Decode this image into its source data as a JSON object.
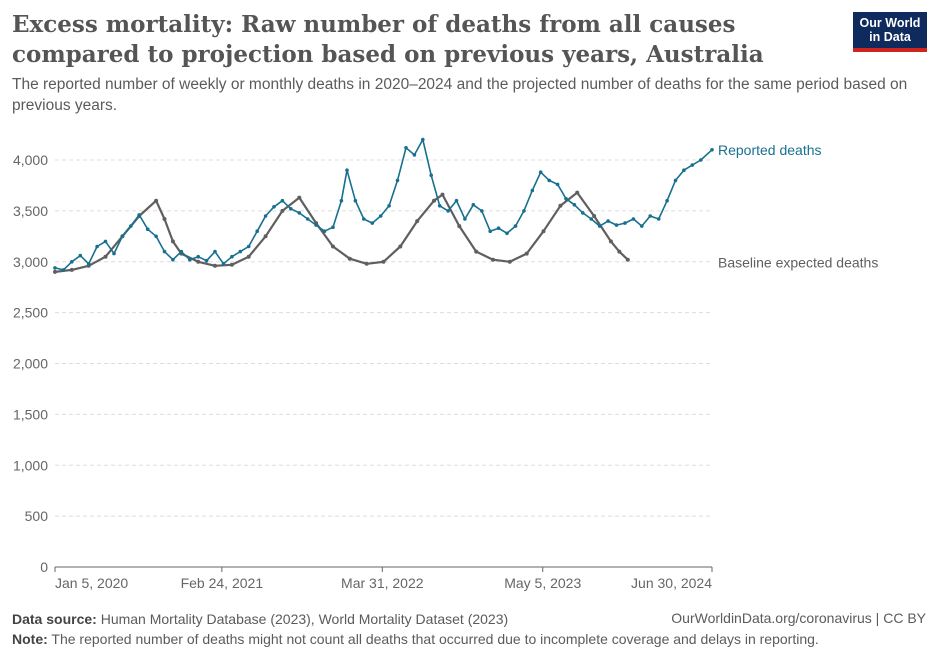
{
  "header": {
    "title": "Excess mortality: Raw number of deaths from all causes compared to projection based on previous years, Australia",
    "subtitle": "The reported number of weekly or monthly deaths in 2020–2024 and the projected number of deaths for the same period based on previous years.",
    "logo_line1": "Our World",
    "logo_line2": "in Data"
  },
  "footer": {
    "source_label": "Data source:",
    "source_text": "Human Mortality Database (2023), World Mortality Dataset (2023)",
    "credit": "OurWorldinData.org/coronavirus | CC BY",
    "note_label": "Note:",
    "note_text": "The reported number of deaths might not count all deaths that occurred due to incomplete coverage and delays in reporting."
  },
  "colors": {
    "reported": "#18708f",
    "baseline": "#5f5f5f",
    "grid": "#dddddd",
    "axis": "#666666"
  },
  "chart_data": {
    "type": "line",
    "title": "Excess mortality: Raw number of deaths from all causes compared to projection based on previous years, Australia",
    "x_unit": "date",
    "xlim": [
      "2020-01-05",
      "2024-06-30"
    ],
    "ylim": [
      0,
      4000
    ],
    "y_ticks": [
      0,
      500,
      1000,
      1500,
      2000,
      2500,
      3000,
      3500,
      4000
    ],
    "y_tick_labels": [
      "0",
      "500",
      "1,000",
      "1,500",
      "2,000",
      "2,500",
      "3,000",
      "3,500",
      "4,000"
    ],
    "x_ticks": [
      "2020-01-05",
      "2021-02-24",
      "2022-03-31",
      "2023-05-05",
      "2024-06-30"
    ],
    "x_tick_labels": [
      "Jan 5, 2020",
      "Feb 24, 2021",
      "Mar 31, 2022",
      "May 5, 2023",
      "Jun 30, 2024"
    ],
    "grid": "horizontal dashed",
    "series": [
      {
        "name": "Reported deaths",
        "points": [
          [
            "2020-01-05",
            2940
          ],
          [
            "2020-01-26",
            2920
          ],
          [
            "2020-02-16",
            3000
          ],
          [
            "2020-03-08",
            3060
          ],
          [
            "2020-03-29",
            2980
          ],
          [
            "2020-04-19",
            3150
          ],
          [
            "2020-05-10",
            3200
          ],
          [
            "2020-05-31",
            3080
          ],
          [
            "2020-06-21",
            3250
          ],
          [
            "2020-07-12",
            3350
          ],
          [
            "2020-08-02",
            3460
          ],
          [
            "2020-08-23",
            3320
          ],
          [
            "2020-09-13",
            3250
          ],
          [
            "2020-10-04",
            3100
          ],
          [
            "2020-10-25",
            3020
          ],
          [
            "2020-11-15",
            3100
          ],
          [
            "2020-12-06",
            3020
          ],
          [
            "2020-12-27",
            3050
          ],
          [
            "2021-01-17",
            3010
          ],
          [
            "2021-02-07",
            3100
          ],
          [
            "2021-02-28",
            2980
          ],
          [
            "2021-03-21",
            3050
          ],
          [
            "2021-04-11",
            3100
          ],
          [
            "2021-05-02",
            3150
          ],
          [
            "2021-05-23",
            3300
          ],
          [
            "2021-06-13",
            3450
          ],
          [
            "2021-07-04",
            3540
          ],
          [
            "2021-07-25",
            3600
          ],
          [
            "2021-08-15",
            3520
          ],
          [
            "2021-09-05",
            3480
          ],
          [
            "2021-09-26",
            3420
          ],
          [
            "2021-10-17",
            3360
          ],
          [
            "2021-11-07",
            3300
          ],
          [
            "2021-11-28",
            3340
          ],
          [
            "2021-12-19",
            3600
          ],
          [
            "2022-01-02",
            3900
          ],
          [
            "2022-01-23",
            3600
          ],
          [
            "2022-02-13",
            3420
          ],
          [
            "2022-03-06",
            3380
          ],
          [
            "2022-03-27",
            3450
          ],
          [
            "2022-04-17",
            3550
          ],
          [
            "2022-05-08",
            3800
          ],
          [
            "2022-05-29",
            4120
          ],
          [
            "2022-06-19",
            4050
          ],
          [
            "2022-07-10",
            4200
          ],
          [
            "2022-07-31",
            3850
          ],
          [
            "2022-08-21",
            3550
          ],
          [
            "2022-09-11",
            3500
          ],
          [
            "2022-10-02",
            3600
          ],
          [
            "2022-10-23",
            3420
          ],
          [
            "2022-11-13",
            3560
          ],
          [
            "2022-12-04",
            3500
          ],
          [
            "2022-12-25",
            3300
          ],
          [
            "2023-01-15",
            3330
          ],
          [
            "2023-02-05",
            3280
          ],
          [
            "2023-02-26",
            3350
          ],
          [
            "2023-03-19",
            3500
          ],
          [
            "2023-04-09",
            3700
          ],
          [
            "2023-04-30",
            3880
          ],
          [
            "2023-05-21",
            3800
          ],
          [
            "2023-06-11",
            3760
          ],
          [
            "2023-07-02",
            3620
          ],
          [
            "2023-07-23",
            3560
          ],
          [
            "2023-08-13",
            3480
          ],
          [
            "2023-09-03",
            3420
          ],
          [
            "2023-09-24",
            3350
          ],
          [
            "2023-10-15",
            3400
          ],
          [
            "2023-11-05",
            3360
          ],
          [
            "2023-11-26",
            3380
          ],
          [
            "2023-12-17",
            3420
          ],
          [
            "2024-01-07",
            3350
          ],
          [
            "2024-01-28",
            3450
          ],
          [
            "2024-02-18",
            3420
          ],
          [
            "2024-03-10",
            3600
          ],
          [
            "2024-03-31",
            3800
          ],
          [
            "2024-04-21",
            3900
          ],
          [
            "2024-05-12",
            3950
          ],
          [
            "2024-06-02",
            4000
          ],
          [
            "2024-06-30",
            4100
          ]
        ]
      },
      {
        "name": "Baseline expected deaths",
        "points": [
          [
            "2020-01-05",
            2900
          ],
          [
            "2020-02-16",
            2920
          ],
          [
            "2020-03-29",
            2960
          ],
          [
            "2020-05-10",
            3050
          ],
          [
            "2020-06-21",
            3250
          ],
          [
            "2020-08-02",
            3450
          ],
          [
            "2020-09-13",
            3600
          ],
          [
            "2020-10-04",
            3420
          ],
          [
            "2020-10-25",
            3200
          ],
          [
            "2020-11-15",
            3080
          ],
          [
            "2020-12-27",
            3000
          ],
          [
            "2021-02-07",
            2960
          ],
          [
            "2021-03-21",
            2970
          ],
          [
            "2021-05-02",
            3050
          ],
          [
            "2021-06-13",
            3250
          ],
          [
            "2021-07-25",
            3500
          ],
          [
            "2021-09-05",
            3630
          ],
          [
            "2021-10-17",
            3380
          ],
          [
            "2021-11-28",
            3150
          ],
          [
            "2022-01-09",
            3030
          ],
          [
            "2022-02-20",
            2980
          ],
          [
            "2022-04-03",
            3000
          ],
          [
            "2022-05-15",
            3150
          ],
          [
            "2022-06-26",
            3400
          ],
          [
            "2022-08-07",
            3600
          ],
          [
            "2022-08-28",
            3660
          ],
          [
            "2022-10-09",
            3350
          ],
          [
            "2022-11-20",
            3100
          ],
          [
            "2023-01-01",
            3020
          ],
          [
            "2023-02-12",
            3000
          ],
          [
            "2023-03-26",
            3080
          ],
          [
            "2023-05-07",
            3300
          ],
          [
            "2023-06-18",
            3550
          ],
          [
            "2023-07-30",
            3680
          ],
          [
            "2023-09-10",
            3450
          ],
          [
            "2023-10-22",
            3200
          ],
          [
            "2023-11-12",
            3100
          ],
          [
            "2023-12-03",
            3020
          ]
        ]
      }
    ],
    "legend": "inline labels at series ends (right side)"
  }
}
